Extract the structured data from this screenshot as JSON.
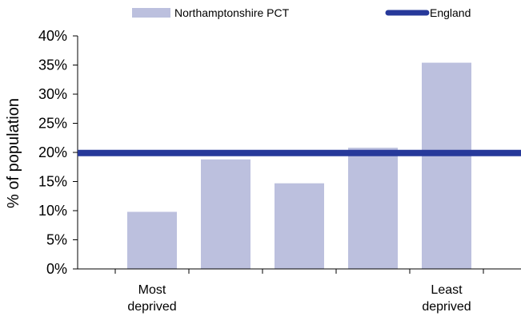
{
  "chart_data": {
    "type": "bar",
    "title": "",
    "ylabel": "% of population",
    "xlabel": "",
    "ylim": [
      0,
      40
    ],
    "yticks": [
      0,
      5,
      10,
      15,
      20,
      25,
      30,
      35,
      40
    ],
    "ytick_labels": [
      "0%",
      "5%",
      "10%",
      "15%",
      "20%",
      "25%",
      "30%",
      "35%",
      "40%"
    ],
    "category_labels": [
      [
        "Most",
        "deprived"
      ],
      [],
      [],
      [],
      [
        "Least",
        "deprived"
      ]
    ],
    "series": [
      {
        "name": "Northamptonshire PCT",
        "type": "bar",
        "color": "#bcc0de",
        "values": [
          9.8,
          18.8,
          14.7,
          20.8,
          35.4
        ]
      },
      {
        "name": "England",
        "type": "line",
        "color": "#27399a",
        "value": 19.9
      }
    ],
    "legend": {
      "position": "top"
    },
    "grid": false
  }
}
